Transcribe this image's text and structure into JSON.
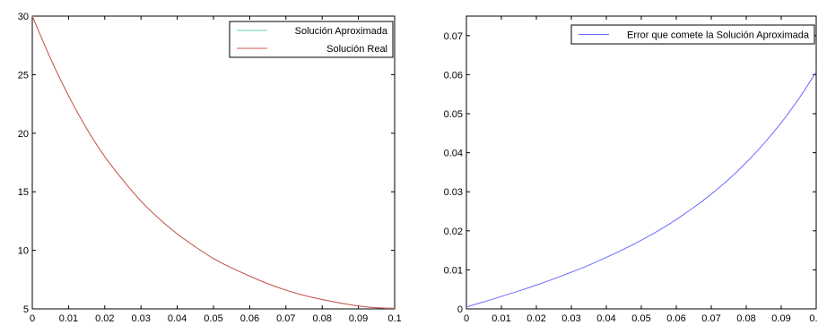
{
  "chart_data": [
    {
      "type": "line",
      "xlim": [
        0,
        0.1
      ],
      "ylim": [
        5,
        30
      ],
      "xticks": [
        "0",
        "0.01",
        "0.02",
        "0.03",
        "0.04",
        "0.05",
        "0.06",
        "0.07",
        "0.08",
        "0.09",
        "0.1"
      ],
      "yticks": [
        "5",
        "10",
        "15",
        "20",
        "25",
        "30"
      ],
      "grid": false,
      "legend_position": "top-right",
      "series": [
        {
          "name": "Solución Aproximada",
          "color": "#5fd3b0",
          "x": [
            0,
            0.005,
            0.01,
            0.015,
            0.02,
            0.025,
            0.03,
            0.035,
            0.04,
            0.045,
            0.05,
            0.055,
            0.06,
            0.065,
            0.07,
            0.075,
            0.08,
            0.085,
            0.09,
            0.095,
            0.1
          ],
          "y": [
            30.0,
            26.4,
            23.2,
            20.4,
            18.0,
            16.0,
            14.2,
            12.7,
            11.4,
            10.3,
            9.3,
            8.5,
            7.8,
            7.15,
            6.6,
            6.15,
            5.8,
            5.5,
            5.25,
            5.1,
            5.05
          ]
        },
        {
          "name": "Solución Real",
          "color": "#d9534f",
          "x": [
            0,
            0.005,
            0.01,
            0.015,
            0.02,
            0.025,
            0.03,
            0.035,
            0.04,
            0.045,
            0.05,
            0.055,
            0.06,
            0.065,
            0.07,
            0.075,
            0.08,
            0.085,
            0.09,
            0.095,
            0.1
          ],
          "y": [
            30.0,
            26.4,
            23.2,
            20.4,
            18.0,
            16.0,
            14.2,
            12.7,
            11.4,
            10.3,
            9.3,
            8.5,
            7.8,
            7.15,
            6.6,
            6.15,
            5.8,
            5.5,
            5.25,
            5.1,
            5.05
          ]
        }
      ]
    },
    {
      "type": "line",
      "xlim": [
        0,
        0.1
      ],
      "ylim": [
        0,
        0.075
      ],
      "xticks": [
        "0",
        "0.01",
        "0.02",
        "0.03",
        "0.04",
        "0.05",
        "0.06",
        "0.07",
        "0.08",
        "0.09",
        "0.1"
      ],
      "yticks": [
        "0",
        "0.01",
        "0.02",
        "0.03",
        "0.04",
        "0.05",
        "0.06",
        "0.07"
      ],
      "grid": false,
      "legend_position": "top-right",
      "series": [
        {
          "name": "Error que comete la Solución Aproximada",
          "color": "#6b6bff",
          "x": [
            0,
            0.005,
            0.01,
            0.015,
            0.02,
            0.025,
            0.03,
            0.035,
            0.04,
            0.045,
            0.05,
            0.055,
            0.06,
            0.065,
            0.07,
            0.075,
            0.08,
            0.085,
            0.09,
            0.095,
            0.1
          ],
          "y": [
            0.0005,
            0.0018,
            0.0032,
            0.0046,
            0.0061,
            0.0077,
            0.0094,
            0.0112,
            0.0132,
            0.0153,
            0.0176,
            0.0201,
            0.0229,
            0.026,
            0.0294,
            0.0332,
            0.0375,
            0.0423,
            0.0477,
            0.0538,
            0.0607
          ]
        }
      ]
    }
  ]
}
